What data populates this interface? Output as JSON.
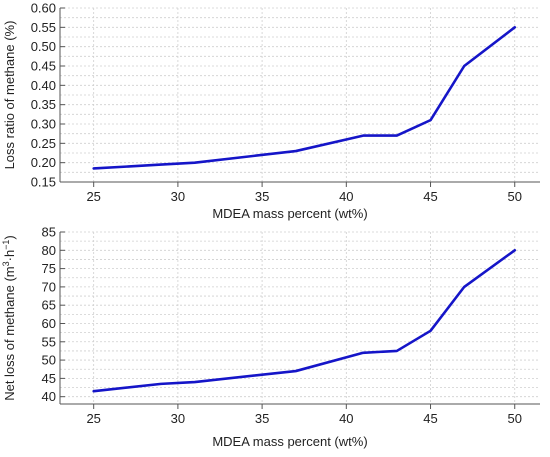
{
  "colors": {
    "series": "#1515c8"
  },
  "chart_data": [
    {
      "type": "line",
      "xlabel": "MDEA mass percent (wt%)",
      "ylabel": "Loss ratio of methane (%)",
      "xlim": [
        23,
        51.5
      ],
      "ylim": [
        0.15,
        0.6
      ],
      "xticks": [
        25,
        30,
        35,
        40,
        45,
        50
      ],
      "yticks": [
        0.15,
        0.2,
        0.25,
        0.3,
        0.35,
        0.4,
        0.45,
        0.5,
        0.55,
        0.6
      ],
      "ytick_labels": [
        "0.15",
        "0.20",
        "0.25",
        "0.30",
        "0.35",
        "0.40",
        "0.45",
        "0.50",
        "0.55",
        "0.60"
      ],
      "grid": true,
      "series": [
        {
          "x": [
            25,
            29,
            31,
            37,
            41,
            43,
            45,
            47,
            50
          ],
          "y": [
            0.185,
            0.195,
            0.2,
            0.23,
            0.27,
            0.27,
            0.31,
            0.45,
            0.55
          ]
        }
      ]
    },
    {
      "type": "line",
      "xlabel": "MDEA mass percent (wt%)",
      "ylabel_main": "Net loss of methane (m",
      "ylabel_sup1": "3",
      "ylabel_mid": "·h",
      "ylabel_sup2": "−1",
      "ylabel_end": ")",
      "xlim": [
        23,
        51.5
      ],
      "ylim": [
        38,
        85
      ],
      "xticks": [
        25,
        30,
        35,
        40,
        45,
        50
      ],
      "yticks": [
        40,
        45,
        50,
        55,
        60,
        65,
        70,
        75,
        80,
        85
      ],
      "ytick_labels": [
        "40",
        "45",
        "50",
        "55",
        "60",
        "65",
        "70",
        "75",
        "80",
        "85"
      ],
      "grid": true,
      "series": [
        {
          "x": [
            25,
            29,
            31,
            37,
            41,
            43,
            45,
            47,
            50
          ],
          "y": [
            41.5,
            43.5,
            44.0,
            47.0,
            52.0,
            52.5,
            58.0,
            70.0,
            80.0
          ]
        }
      ]
    }
  ]
}
